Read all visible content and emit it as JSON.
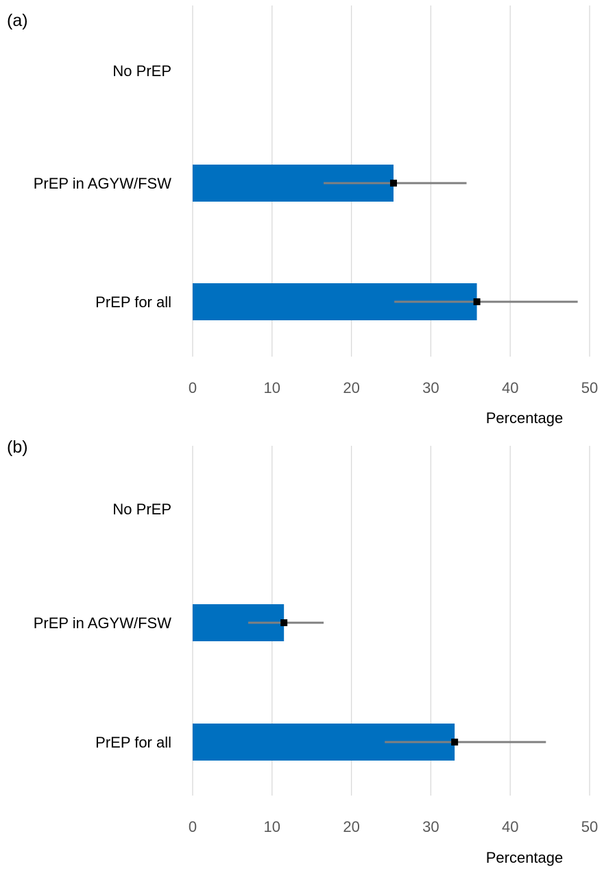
{
  "chart_data": [
    {
      "type": "bar",
      "orientation": "horizontal",
      "panel_label": "(a)",
      "categories": [
        "No PrEP",
        "PrEP in AGYW/FSW",
        "PrEP for all"
      ],
      "values": [
        0,
        25.3,
        35.8
      ],
      "error_low": [
        null,
        16.5,
        25.4
      ],
      "error_high": [
        null,
        34.5,
        48.5
      ],
      "xlabel": "Percentage",
      "xlim": [
        0,
        50
      ],
      "xticks": [
        0,
        10,
        20,
        30,
        40,
        50
      ],
      "grid": "vertical"
    },
    {
      "type": "bar",
      "orientation": "horizontal",
      "panel_label": "(b)",
      "categories": [
        "No PrEP",
        "PrEP in AGYW/FSW",
        "PrEP for all"
      ],
      "values": [
        0,
        11.5,
        33.0
      ],
      "error_low": [
        null,
        7.0,
        24.2
      ],
      "error_high": [
        null,
        16.5,
        44.5
      ],
      "xlabel": "Percentage",
      "xlim": [
        0,
        50
      ],
      "xticks": [
        0,
        10,
        20,
        30,
        40,
        50
      ],
      "grid": "vertical"
    }
  ],
  "colors": {
    "bar": "#0070c0",
    "error_line": "#808080",
    "marker": "#000000",
    "grid": "#d9d9d9"
  }
}
